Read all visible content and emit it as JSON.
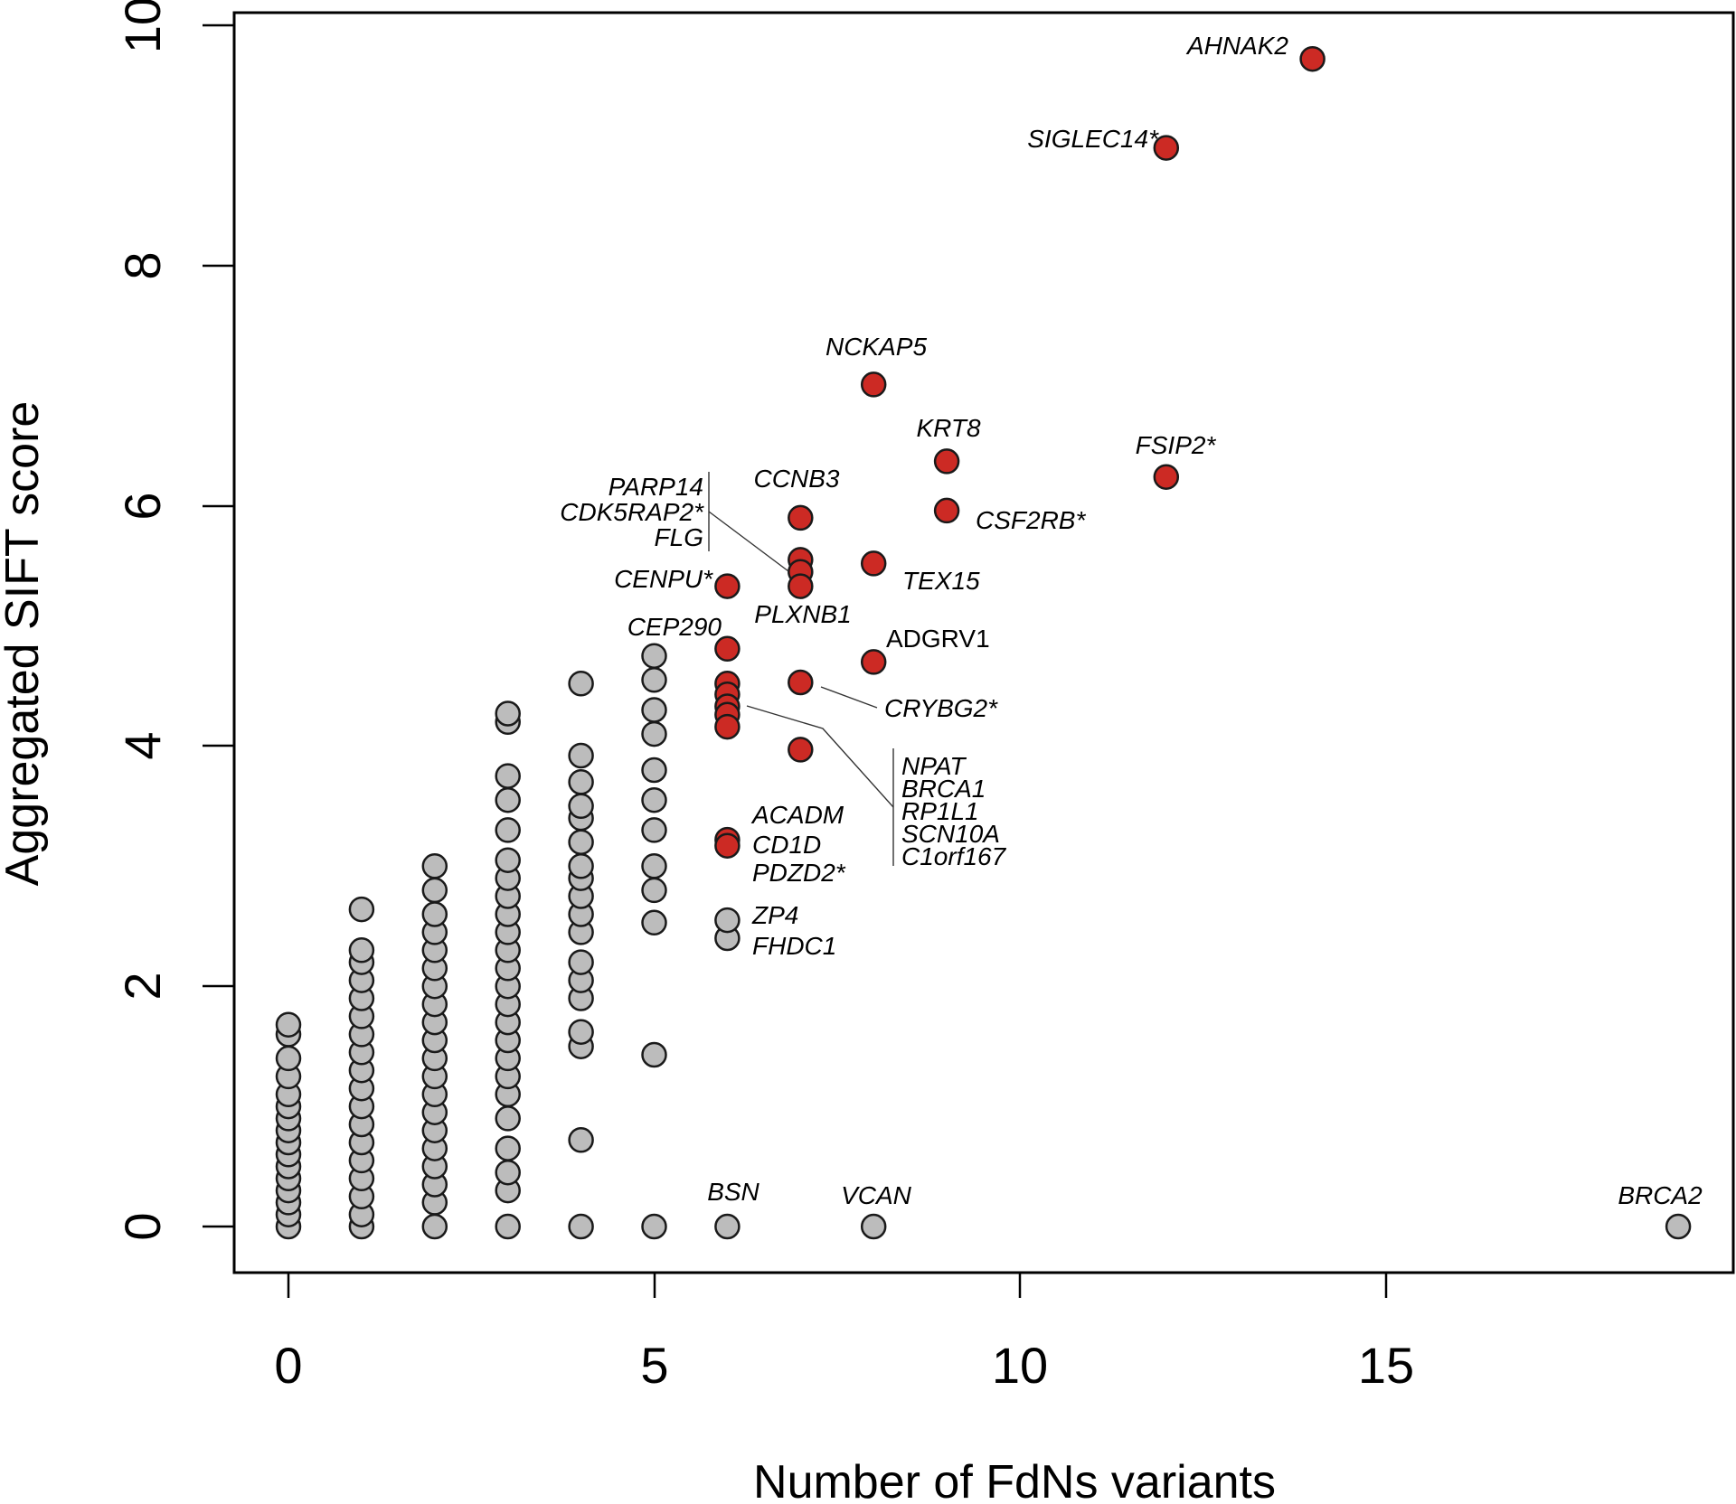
{
  "chart_data": {
    "type": "scatter",
    "xlabel": "Number of FdNs variants",
    "ylabel": "Aggregated SIFT score",
    "xlim": [
      -0.8,
      19.8
    ],
    "ylim": [
      -0.38,
      10.3
    ],
    "x_ticks": [
      0,
      5,
      10,
      15
    ],
    "y_ticks": [
      0,
      2,
      4,
      6,
      8,
      10
    ],
    "x_tick_labels": [
      "0",
      "5",
      "10",
      "15"
    ],
    "y_tick_labels": [
      "0",
      "2",
      "4",
      "6",
      "8",
      "10"
    ],
    "grid": false,
    "legend": "none",
    "colors": {
      "highlight": "#cc2a24",
      "background": "#bcbcbc",
      "outline": "#1a1a1a"
    },
    "series": [
      {
        "color": "#bcbcbc",
        "points": [
          [
            0,
            0
          ],
          [
            0,
            0.1
          ],
          [
            0,
            0.2
          ],
          [
            0,
            0.3
          ],
          [
            0,
            0.4
          ],
          [
            0,
            0.5
          ],
          [
            0,
            0.6
          ],
          [
            0,
            0.7
          ],
          [
            0,
            0.8
          ],
          [
            0,
            0.9
          ],
          [
            0,
            1.0
          ],
          [
            0,
            1.1
          ],
          [
            0,
            1.25
          ],
          [
            0,
            1.4
          ],
          [
            0,
            1.6
          ],
          [
            0,
            1.68
          ],
          [
            1,
            0
          ],
          [
            1,
            0.1
          ],
          [
            1,
            0.25
          ],
          [
            1,
            0.4
          ],
          [
            1,
            0.55
          ],
          [
            1,
            0.7
          ],
          [
            1,
            0.85
          ],
          [
            1,
            1.0
          ],
          [
            1,
            1.15
          ],
          [
            1,
            1.3
          ],
          [
            1,
            1.45
          ],
          [
            1,
            1.6
          ],
          [
            1,
            1.75
          ],
          [
            1,
            1.9
          ],
          [
            1,
            2.05
          ],
          [
            1,
            2.2
          ],
          [
            1,
            2.3
          ],
          [
            1,
            2.64
          ],
          [
            2,
            0
          ],
          [
            2,
            0.2
          ],
          [
            2,
            0.35
          ],
          [
            2,
            0.5
          ],
          [
            2,
            0.65
          ],
          [
            2,
            0.8
          ],
          [
            2,
            0.95
          ],
          [
            2,
            1.1
          ],
          [
            2,
            1.25
          ],
          [
            2,
            1.4
          ],
          [
            2,
            1.55
          ],
          [
            2,
            1.7
          ],
          [
            2,
            1.85
          ],
          [
            2,
            2.0
          ],
          [
            2,
            2.15
          ],
          [
            2,
            2.3
          ],
          [
            2,
            2.45
          ],
          [
            2,
            2.6
          ],
          [
            2,
            2.8
          ],
          [
            2,
            3.0
          ],
          [
            3,
            0
          ],
          [
            3,
            0.3
          ],
          [
            3,
            0.45
          ],
          [
            3,
            0.65
          ],
          [
            3,
            0.9
          ],
          [
            3,
            1.1
          ],
          [
            3,
            1.25
          ],
          [
            3,
            1.4
          ],
          [
            3,
            1.55
          ],
          [
            3,
            1.7
          ],
          [
            3,
            1.85
          ],
          [
            3,
            2.0
          ],
          [
            3,
            2.15
          ],
          [
            3,
            2.3
          ],
          [
            3,
            2.45
          ],
          [
            3,
            2.6
          ],
          [
            3,
            2.75
          ],
          [
            3,
            2.9
          ],
          [
            3,
            3.05
          ],
          [
            3,
            3.3
          ],
          [
            3,
            3.55
          ],
          [
            3,
            3.75
          ],
          [
            3,
            4.2
          ],
          [
            3,
            4.27
          ],
          [
            4,
            0
          ],
          [
            4,
            0.72
          ],
          [
            4,
            1.5
          ],
          [
            4,
            1.62
          ],
          [
            4,
            1.9
          ],
          [
            4,
            2.05
          ],
          [
            4,
            2.2
          ],
          [
            4,
            2.45
          ],
          [
            4,
            2.6
          ],
          [
            4,
            2.75
          ],
          [
            4,
            2.9
          ],
          [
            4,
            3.0
          ],
          [
            4,
            3.2
          ],
          [
            4,
            3.4
          ],
          [
            4,
            3.5
          ],
          [
            4,
            3.7
          ],
          [
            4,
            3.92
          ],
          [
            4,
            4.52
          ],
          [
            5,
            0
          ],
          [
            5,
            1.43
          ],
          [
            5,
            2.53
          ],
          [
            5,
            2.8
          ],
          [
            5,
            3.0
          ],
          [
            5,
            3.3
          ],
          [
            5,
            3.55
          ],
          [
            5,
            3.8
          ],
          [
            5,
            4.1
          ],
          [
            5,
            4.3
          ],
          [
            5,
            4.55
          ],
          [
            5,
            4.75
          ],
          [
            6,
            0
          ],
          [
            6,
            2.4
          ],
          [
            6,
            2.55
          ],
          [
            8,
            0
          ],
          [
            19,
            0
          ]
        ]
      },
      {
        "color": "#cc2a24",
        "points": [
          [
            14,
            9.72
          ],
          [
            12,
            8.98
          ],
          [
            8,
            7.01
          ],
          [
            9,
            6.37
          ],
          [
            12,
            6.24
          ],
          [
            9,
            5.96
          ],
          [
            7,
            5.9
          ],
          [
            7,
            5.55
          ],
          [
            7,
            5.45
          ],
          [
            7,
            5.33
          ],
          [
            8,
            5.52
          ],
          [
            6,
            5.33
          ],
          [
            6,
            4.81
          ],
          [
            8,
            4.7
          ],
          [
            7,
            4.53
          ],
          [
            6,
            4.52
          ],
          [
            6,
            4.43
          ],
          [
            6,
            4.33
          ],
          [
            6,
            4.26
          ],
          [
            6,
            4.16
          ],
          [
            7,
            3.97
          ],
          [
            6,
            3.22
          ],
          [
            6,
            3.17
          ]
        ]
      }
    ],
    "annotations": [
      "AHNAK2",
      "SIGLEC14*",
      "NCKAP5",
      "KRT8",
      "FSIP2*",
      "CCNB3",
      "PARP14",
      "CDK5RAP2*",
      "FLG",
      "CSF2RB*",
      "CENPU*",
      "TEX15",
      "PLXNB1",
      "CEP290",
      "ADGRV1",
      "CRYBG2*",
      "NPAT",
      "BRCA1",
      "RP1L1",
      "SCN10A",
      "C1orf167",
      "ACADM",
      "CD1D",
      "PDZD2*",
      "ZP4",
      "FHDC1",
      "BSN",
      "VCAN",
      "BRCA2"
    ]
  }
}
